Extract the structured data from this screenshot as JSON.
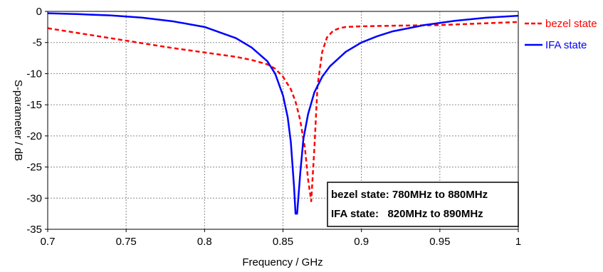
{
  "chart_data": {
    "type": "line",
    "title": "",
    "xlabel": "Frequency / GHz",
    "ylabel": "S-parameter / dB",
    "xlim": [
      0.7,
      1.0
    ],
    "ylim": [
      -35,
      0
    ],
    "xticks": [
      0.7,
      0.75,
      0.8,
      0.85,
      0.9,
      0.95,
      1.0
    ],
    "xtick_labels": [
      "0.7",
      "0.75",
      "0.8",
      "0.85",
      "0.9",
      "0.95",
      "1"
    ],
    "yticks": [
      0,
      -5,
      -10,
      -15,
      -20,
      -25,
      -30,
      -35
    ],
    "ytick_labels": [
      "0",
      "-5",
      "-10",
      "-15",
      "-20",
      "-25",
      "-30",
      "-35"
    ],
    "grid": true,
    "legend_position": "right",
    "series": [
      {
        "name": "bezel state",
        "color": "#ff0000",
        "dash": "dashed",
        "x": [
          0.7,
          0.72,
          0.74,
          0.76,
          0.78,
          0.8,
          0.82,
          0.83,
          0.84,
          0.845,
          0.85,
          0.855,
          0.858,
          0.861,
          0.864,
          0.866,
          0.868,
          0.87,
          0.872,
          0.875,
          0.878,
          0.882,
          0.886,
          0.89,
          0.9,
          0.92,
          0.95,
          0.98,
          1.0
        ],
        "y": [
          -2.7,
          -3.5,
          -4.3,
          -5.1,
          -5.9,
          -6.6,
          -7.3,
          -7.8,
          -8.5,
          -9.2,
          -10.5,
          -12.5,
          -14.5,
          -17.5,
          -22,
          -27,
          -30.5,
          -22,
          -12,
          -6.5,
          -4.2,
          -3.1,
          -2.7,
          -2.5,
          -2.4,
          -2.3,
          -2.2,
          -1.9,
          -1.7
        ]
      },
      {
        "name": "IFA state",
        "color": "#0000ff",
        "dash": "solid",
        "x": [
          0.7,
          0.72,
          0.74,
          0.76,
          0.78,
          0.8,
          0.82,
          0.83,
          0.84,
          0.845,
          0.85,
          0.853,
          0.855,
          0.857,
          0.858,
          0.859,
          0.861,
          0.863,
          0.866,
          0.87,
          0.875,
          0.88,
          0.89,
          0.9,
          0.91,
          0.92,
          0.94,
          0.96,
          0.98,
          1.0
        ],
        "y": [
          -0.3,
          -0.45,
          -0.65,
          -1.0,
          -1.6,
          -2.5,
          -4.3,
          -5.8,
          -8.0,
          -10.0,
          -13.5,
          -17.0,
          -21.0,
          -28.0,
          -32.5,
          -32.5,
          -26.0,
          -20.5,
          -16.5,
          -13.0,
          -10.5,
          -8.8,
          -6.5,
          -5.0,
          -4.0,
          -3.2,
          -2.2,
          -1.5,
          -1.0,
          -0.7
        ]
      }
    ],
    "annotation": {
      "lines": [
        "bezel state: 780MHz to 880MHz",
        "IFA state:   820MHz to 890MHz"
      ]
    }
  }
}
